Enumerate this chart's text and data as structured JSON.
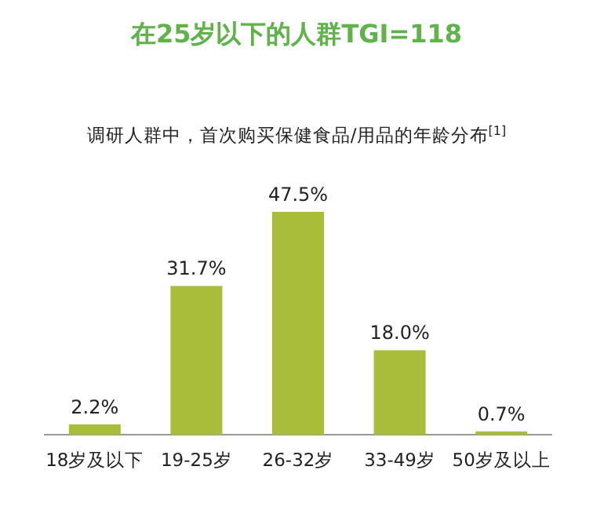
{
  "chart_data": {
    "type": "bar",
    "title": "在25岁以下的人群TGI=118",
    "subtitle": "调研人群中，首次购买保健食品/用品的年龄分布$^{[1]}$",
    "categories": [
      "18岁及以下",
      "19-25岁",
      "26-32岁",
      "33-49岁",
      "50岁及以上"
    ],
    "values": [
      2.2,
      31.7,
      47.5,
      18.0,
      0.7
    ],
    "value_labels": [
      "2.2%",
      "31.7%",
      "47.5%",
      "18.0%",
      "0.7%"
    ],
    "color": "#a9bd3a"
  }
}
